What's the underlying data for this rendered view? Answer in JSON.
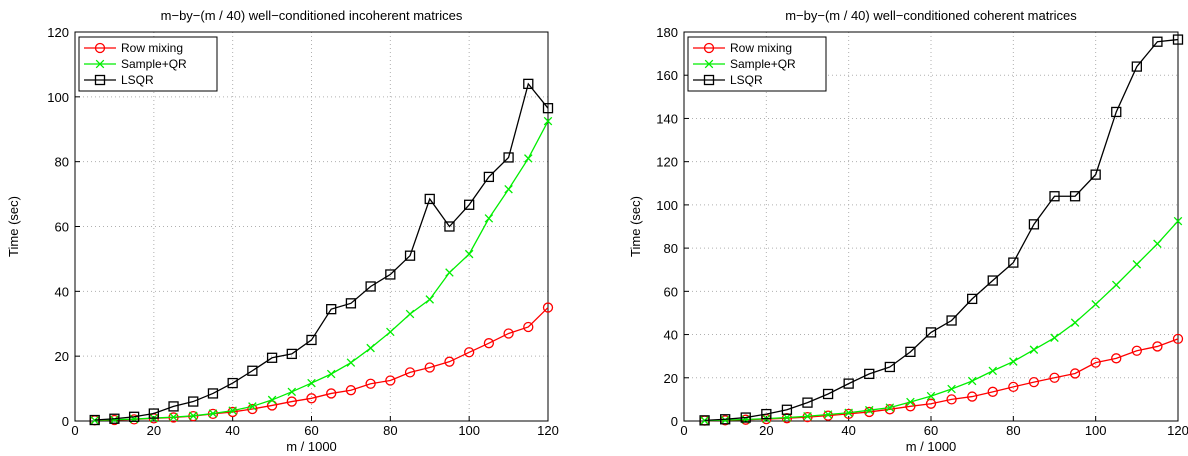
{
  "chart_data": [
    {
      "type": "line",
      "title": "m−by−(m / 40) well−conditioned incoherent matrices",
      "x_label": "m / 1000",
      "y_label": "Time (sec)",
      "x": [
        5,
        10,
        15,
        20,
        25,
        30,
        35,
        40,
        45,
        50,
        55,
        60,
        65,
        70,
        75,
        80,
        85,
        90,
        95,
        100,
        105,
        110,
        115,
        120
      ],
      "series": [
        {
          "name": "Row mixing",
          "color": "#ff0000",
          "marker": "circle",
          "values": [
            0.2,
            0.3,
            0.5,
            0.8,
            1.1,
            1.5,
            2.2,
            2.8,
            3.7,
            4.8,
            6,
            7,
            8.5,
            9.5,
            11.5,
            12.5,
            15,
            16.5,
            18.3,
            21.2,
            24,
            27,
            29,
            35
          ]
        },
        {
          "name": "Sample+QR",
          "color": "#00ee00",
          "marker": "x",
          "values": [
            0.2,
            0.4,
            0.6,
            0.9,
            1.2,
            1.6,
            2.3,
            3.2,
            4.5,
            6.5,
            9,
            11.7,
            14.5,
            18,
            22.5,
            27.5,
            33,
            37.5,
            45.8,
            51.5,
            62.5,
            71.5,
            81,
            92.5
          ]
        },
        {
          "name": "LSQR",
          "color": "#000000",
          "marker": "square",
          "values": [
            0.3,
            0.7,
            1.3,
            2.3,
            4.5,
            6,
            8.5,
            11.7,
            15.5,
            19.5,
            20.7,
            25,
            34.5,
            36.3,
            41.5,
            45.2,
            51,
            68.5,
            60,
            66.7,
            75.3,
            81.3,
            104,
            96.5
          ]
        }
      ],
      "xlim": [
        0,
        120
      ],
      "ylim": [
        0,
        120
      ],
      "xticks": [
        0,
        20,
        40,
        60,
        80,
        100,
        120
      ],
      "yticks": [
        0,
        20,
        40,
        60,
        80,
        100,
        120
      ],
      "grid": true,
      "legend": "upper left"
    },
    {
      "type": "line",
      "title": "m−by−(m / 40) well−conditioned coherent matrices",
      "x_label": "m / 1000",
      "y_label": "Time (sec)",
      "x": [
        5,
        10,
        15,
        20,
        25,
        30,
        35,
        40,
        45,
        50,
        55,
        60,
        65,
        70,
        75,
        80,
        85,
        90,
        95,
        100,
        105,
        110,
        115,
        120
      ],
      "series": [
        {
          "name": "Row mixing",
          "color": "#ff0000",
          "marker": "circle",
          "values": [
            0.2,
            0.3,
            0.6,
            0.9,
            1.3,
            1.8,
            2.5,
            3.3,
            4.2,
            5.4,
            6.8,
            8,
            10,
            11.3,
            13.5,
            15.8,
            18,
            20,
            22,
            27,
            29,
            32.5,
            34.5,
            38
          ]
        },
        {
          "name": "Sample+QR",
          "color": "#00ee00",
          "marker": "x",
          "values": [
            0.2,
            0.4,
            0.7,
            1.1,
            1.6,
            2.2,
            3,
            3.8,
            5,
            6.2,
            8.8,
            11.5,
            14.8,
            18.5,
            23.2,
            27.5,
            33,
            38.5,
            45.5,
            54,
            63,
            72.5,
            82,
            92.5
          ]
        },
        {
          "name": "LSQR",
          "color": "#000000",
          "marker": "square",
          "values": [
            0.3,
            0.8,
            1.6,
            3.2,
            5.2,
            8.5,
            12.5,
            17.3,
            21.8,
            25,
            32,
            41,
            46.5,
            56.5,
            65,
            73.3,
            91,
            104,
            104,
            114,
            143,
            164,
            175.5,
            176.5
          ]
        }
      ],
      "xlim": [
        0,
        120
      ],
      "ylim": [
        0,
        180
      ],
      "xticks": [
        0,
        20,
        40,
        60,
        80,
        100,
        120
      ],
      "yticks": [
        0,
        20,
        40,
        60,
        80,
        100,
        120,
        140,
        160,
        180
      ],
      "grid": true,
      "legend": "upper left"
    }
  ]
}
